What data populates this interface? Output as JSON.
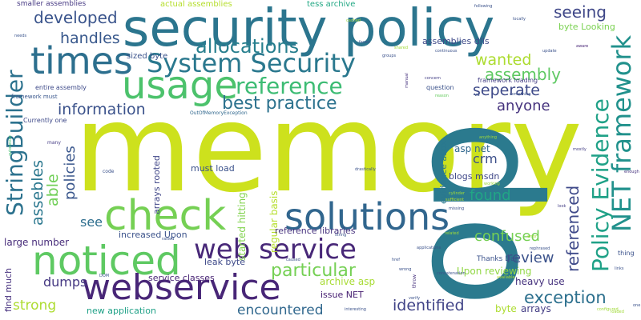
{
  "words": [
    {
      "text": "memory",
      "color": "#cde11d"
    },
    {
      "text": "op",
      "color": "#2b7a8e"
    },
    {
      "text": "security policy",
      "color": "#2b758e"
    },
    {
      "text": "times",
      "color": "#2c6f8e"
    },
    {
      "text": "usage",
      "color": "#4cc26c"
    },
    {
      "text": "System Security",
      "color": "#2a788e"
    },
    {
      "text": "check",
      "color": "#75d054"
    },
    {
      "text": "solutions",
      "color": "#31668e"
    },
    {
      "text": "noticed",
      "color": "#5ec962"
    },
    {
      "text": "webservice",
      "color": "#482677"
    },
    {
      "text": "web service",
      "color": "#482878"
    },
    {
      "text": "NET framework",
      "color": "#21918c"
    },
    {
      "text": "Policy Evidence",
      "color": "#1fa187"
    },
    {
      "text": "StringBuilder",
      "color": "#2c728e"
    },
    {
      "text": "reference",
      "color": "#3dbc74"
    },
    {
      "text": "best practice",
      "color": "#2c728e"
    },
    {
      "text": "allocations",
      "color": "#277f8e"
    },
    {
      "text": "information",
      "color": "#3b528b"
    },
    {
      "text": "handles",
      "color": "#38588c"
    },
    {
      "text": "developed",
      "color": "#3a548c"
    },
    {
      "text": "seeing",
      "color": "#3f4788"
    },
    {
      "text": "assembly",
      "color": "#5ec962"
    },
    {
      "text": "wanted",
      "color": "#addc30"
    },
    {
      "text": "seperate",
      "color": "#3e4a89"
    },
    {
      "text": "anyone",
      "color": "#46337e"
    },
    {
      "text": "exception",
      "color": "#2d708e"
    },
    {
      "text": "referenced",
      "color": "#3e4989"
    },
    {
      "text": "review",
      "color": "#3b528b"
    },
    {
      "text": "confused",
      "color": "#75d054"
    },
    {
      "text": "found",
      "color": "#21a685"
    },
    {
      "text": "crm",
      "color": "#3c4f8a"
    },
    {
      "text": "asp net",
      "color": "#31688e"
    },
    {
      "text": "particular",
      "color": "#75d054"
    },
    {
      "text": "identified",
      "color": "#404387"
    },
    {
      "text": "encountered",
      "color": "#31688e"
    },
    {
      "text": "dumps",
      "color": "#453882"
    },
    {
      "text": "strong",
      "color": "#addc30"
    },
    {
      "text": "see",
      "color": "#2e6e8e"
    },
    {
      "text": "assebles",
      "color": "#2a778e"
    },
    {
      "text": "able",
      "color": "#70cf57"
    },
    {
      "text": "policies",
      "color": "#39568c"
    },
    {
      "text": "large number",
      "color": "#472c7a"
    },
    {
      "text": "increased Upon",
      "color": "#3b528b"
    },
    {
      "text": "leak byte",
      "color": "#3e4a89"
    },
    {
      "text": "service classes",
      "color": "#482475"
    },
    {
      "text": "new application",
      "color": "#1fa187"
    },
    {
      "text": "issue NET",
      "color": "#482173"
    },
    {
      "text": "Upon reviewing",
      "color": "#90d743"
    },
    {
      "text": "heavy use",
      "color": "#46327e"
    },
    {
      "text": "byte",
      "color": "#addc30"
    },
    {
      "text": "arrays",
      "color": "#433d84"
    },
    {
      "text": "archive asp",
      "color": "#a8db34"
    },
    {
      "text": "Thanks Dan",
      "color": "#3b528b"
    },
    {
      "text": "regular basis",
      "color": "#b5de2b"
    },
    {
      "text": "started hitting",
      "color": "#81d34d"
    },
    {
      "text": "arrays rooted",
      "color": "#404688"
    },
    {
      "text": "must load",
      "color": "#3b528b"
    },
    {
      "text": "blogs msdn",
      "color": "#3f4788"
    },
    {
      "text": "evidence aspx",
      "color": "#2a788e"
    },
    {
      "text": "reference libraries",
      "color": "#46327e"
    },
    {
      "text": "sized byte",
      "color": "#3b528b"
    },
    {
      "text": "actual assemblies",
      "color": "#b5de2b"
    },
    {
      "text": "tess archive",
      "color": "#22a884"
    },
    {
      "text": "smaller assemblies",
      "color": "#453882"
    },
    {
      "text": "entire assembly",
      "color": "#3e4a89"
    },
    {
      "text": "framework must",
      "color": "#39568c"
    },
    {
      "text": "Currently one",
      "color": "#3e4989"
    },
    {
      "text": "assemblies dlls",
      "color": "#3e4a89"
    },
    {
      "text": "byte Looking",
      "color": "#7ad151"
    },
    {
      "text": "question",
      "color": "#3b528b"
    },
    {
      "text": "framework loading",
      "color": "#433d84"
    },
    {
      "text": "find much",
      "color": "#46307e"
    },
    {
      "text": "OutOfMemoryException",
      "color": "#31688e"
    },
    {
      "text": "autoresize",
      "color": "#44bf70"
    },
    {
      "text": "many",
      "color": "#443b84"
    },
    {
      "text": "code",
      "color": "#3b528b"
    },
    {
      "text": "needs",
      "color": "#3a548c"
    },
    {
      "text": "thing",
      "color": "#3b528b"
    },
    {
      "text": "faced",
      "color": "#39558c"
    },
    {
      "text": "concern",
      "color": "#433e85"
    },
    {
      "text": "reason",
      "color": "#65cb5e"
    },
    {
      "text": "vs",
      "color": "#3b528b"
    },
    {
      "text": "manual",
      "color": "#46327e"
    },
    {
      "text": "groups",
      "color": "#3b528b"
    },
    {
      "text": "update",
      "color": "#3b528b"
    },
    {
      "text": "aware",
      "color": "#482475"
    },
    {
      "text": "following",
      "color": "#3b528b"
    },
    {
      "text": "mostly",
      "color": "#433e85"
    },
    {
      "text": "enough",
      "color": "#46327e"
    },
    {
      "text": "look",
      "color": "#433e85"
    },
    {
      "text": "links",
      "color": "#3b528b"
    },
    {
      "text": "href",
      "color": "#3b528b"
    },
    {
      "text": "sufficient",
      "color": "#b5de2b"
    },
    {
      "text": "missing",
      "color": "#3b528b"
    },
    {
      "text": "throw",
      "color": "#46327e"
    },
    {
      "text": "concatenation",
      "color": "#3b528b"
    },
    {
      "text": "verify",
      "color": "#3b528b"
    },
    {
      "text": "rephrased",
      "color": "#3b528b"
    },
    {
      "text": "string",
      "color": "#3b528b"
    },
    {
      "text": "raised",
      "color": "#3b528b"
    },
    {
      "text": "caused",
      "color": "#3b528b"
    },
    {
      "text": "one",
      "color": "#3b528b"
    },
    {
      "text": "cached",
      "color": "#a0da39"
    },
    {
      "text": "shared",
      "color": "#a0da39"
    },
    {
      "text": "cylinder",
      "color": "#a0da39"
    },
    {
      "text": "something",
      "color": "#3b528b"
    },
    {
      "text": "anything",
      "color": "#a0da39"
    },
    {
      "text": "continuous",
      "color": "#3b528b"
    },
    {
      "text": "loaded",
      "color": "#a0da39"
    },
    {
      "text": "locally",
      "color": "#3b528b"
    },
    {
      "text": "drastically",
      "color": "#3b528b"
    },
    {
      "text": "error",
      "color": "#a0da39"
    },
    {
      "text": "working",
      "color": "#a0da39"
    },
    {
      "text": "related",
      "color": "#a0da39"
    },
    {
      "text": "wrong",
      "color": "#3b528b"
    },
    {
      "text": "applications",
      "color": "#3b528b"
    },
    {
      "text": "DOM",
      "color": "#3b528b"
    },
    {
      "text": "available",
      "color": "#b5de2b"
    },
    {
      "text": "interesting",
      "color": "#3b528b"
    },
    {
      "text": "configured",
      "color": "#a0da39"
    }
  ]
}
